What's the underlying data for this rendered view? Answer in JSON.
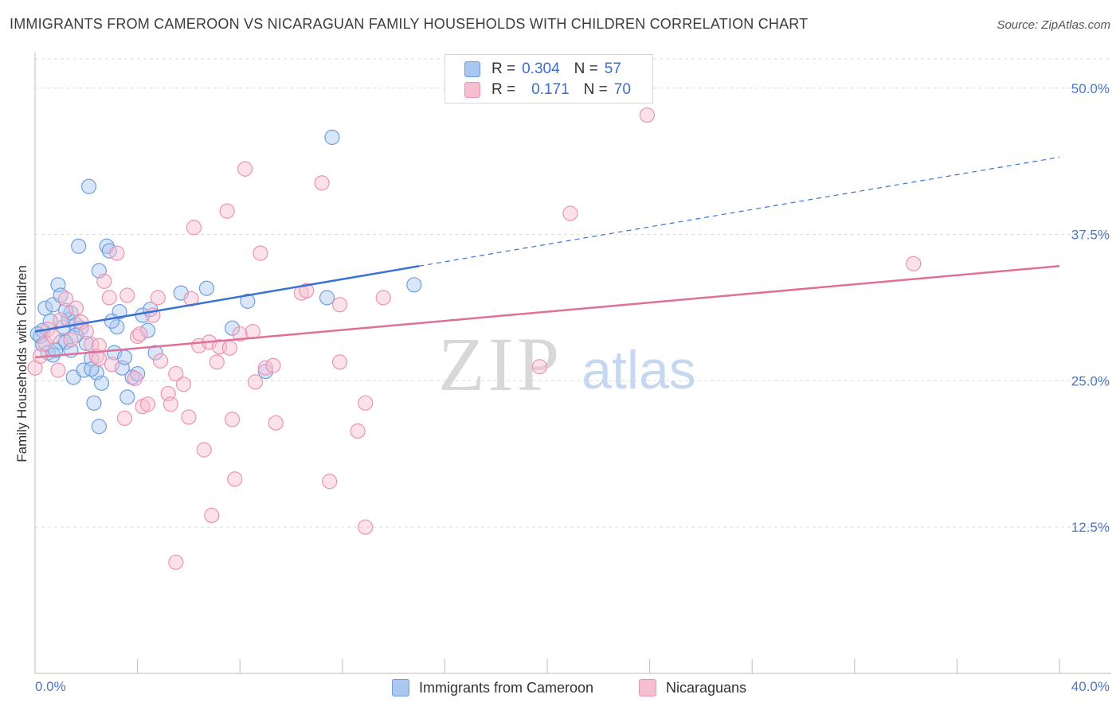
{
  "title": "IMMIGRANTS FROM CAMEROON VS NICARAGUAN FAMILY HOUSEHOLDS WITH CHILDREN CORRELATION CHART",
  "source": "Source: ZipAtlas.com",
  "watermark": {
    "zip": "ZIP",
    "atlas": "atlas"
  },
  "colors": {
    "blue_fill": "#aac7f0",
    "blue_stroke": "#6f9ee0",
    "blue_line": "#3a72d2",
    "pink_fill": "#f6bfd0",
    "pink_stroke": "#ec93b1",
    "pink_line": "#e0709a",
    "tick_text": "#4a78c8",
    "grid": "#dcdcdc"
  },
  "legend_top": {
    "rows": [
      {
        "r_label": "R =",
        "r_value": "0.304",
        "n_label": "N =",
        "n_value": "57"
      },
      {
        "r_label": "R =",
        "r_value": "0.171",
        "n_label": "N =",
        "n_value": "70"
      }
    ]
  },
  "legend_bottom": {
    "items": [
      {
        "label": "Immigrants from Cameroon"
      },
      {
        "label": "Nicaraguans"
      }
    ]
  },
  "chart_data": {
    "type": "scatter",
    "title": "IMMIGRANTS FROM CAMEROON VS NICARAGUAN FAMILY HOUSEHOLDS WITH CHILDREN CORRELATION CHART",
    "xlabel": "",
    "ylabel": "Family Households with Children",
    "xlim": [
      0,
      40
    ],
    "ylim": [
      0,
      52.5
    ],
    "y_ticks": [
      12.5,
      25.0,
      37.5,
      50.0
    ],
    "y_tick_labels": [
      "12.5%",
      "25.0%",
      "37.5%",
      "50.0%"
    ],
    "x_tick_labels": [
      "0.0%",
      "40.0%"
    ],
    "grid": true,
    "legend_position": "top-center",
    "series": [
      {
        "name": "Immigrants from Cameroon",
        "color": "#aac7f0",
        "trend": {
          "x": [
            0,
            15
          ],
          "y": [
            29.2,
            34.8
          ],
          "dashed_to": [
            40,
            44.1
          ]
        },
        "points": [
          [
            0.2,
            28.8
          ],
          [
            0.3,
            29.3
          ],
          [
            0.3,
            28.1
          ],
          [
            0.4,
            31.2
          ],
          [
            0.5,
            27.4
          ],
          [
            0.6,
            30.1
          ],
          [
            0.7,
            31.5
          ],
          [
            0.7,
            27.2
          ],
          [
            0.9,
            33.2
          ],
          [
            1.0,
            32.3
          ],
          [
            1.0,
            28.3
          ],
          [
            1.1,
            29.6
          ],
          [
            1.2,
            28.3
          ],
          [
            1.3,
            30.2
          ],
          [
            1.4,
            27.6
          ],
          [
            1.4,
            30.8
          ],
          [
            1.5,
            25.3
          ],
          [
            1.6,
            29.8
          ],
          [
            1.7,
            36.5
          ],
          [
            1.8,
            29.5
          ],
          [
            1.9,
            25.9
          ],
          [
            2.0,
            28.2
          ],
          [
            2.1,
            41.6
          ],
          [
            2.2,
            26.9
          ],
          [
            2.3,
            23.1
          ],
          [
            2.4,
            25.7
          ],
          [
            2.5,
            21.1
          ],
          [
            2.5,
            34.4
          ],
          [
            2.6,
            24.8
          ],
          [
            2.8,
            36.5
          ],
          [
            2.9,
            36.1
          ],
          [
            3.1,
            27.4
          ],
          [
            3.2,
            29.6
          ],
          [
            3.3,
            30.9
          ],
          [
            3.4,
            26.1
          ],
          [
            3.5,
            27.0
          ],
          [
            3.6,
            23.6
          ],
          [
            3.8,
            25.3
          ],
          [
            4.2,
            30.6
          ],
          [
            4.4,
            29.3
          ],
          [
            4.5,
            31.1
          ],
          [
            4.7,
            27.4
          ],
          [
            5.7,
            32.5
          ],
          [
            6.7,
            32.9
          ],
          [
            7.7,
            29.5
          ],
          [
            8.3,
            31.8
          ],
          [
            9.0,
            25.8
          ],
          [
            11.4,
            32.1
          ],
          [
            11.6,
            45.8
          ],
          [
            14.8,
            33.2
          ],
          [
            0.1,
            29.0
          ],
          [
            0.8,
            27.6
          ],
          [
            1.2,
            31.0
          ],
          [
            1.6,
            28.9
          ],
          [
            2.2,
            26.0
          ],
          [
            3.0,
            30.1
          ],
          [
            4.0,
            25.6
          ]
        ]
      },
      {
        "name": "Nicaraguans",
        "color": "#f6bfd0",
        "trend": {
          "x": [
            0,
            40
          ],
          "y": [
            27.0,
            34.8
          ]
        },
        "points": [
          [
            0.0,
            26.1
          ],
          [
            0.2,
            27.1
          ],
          [
            0.4,
            28.2
          ],
          [
            0.5,
            29.4
          ],
          [
            0.7,
            28.8
          ],
          [
            0.9,
            25.9
          ],
          [
            1.0,
            30.2
          ],
          [
            1.2,
            32.0
          ],
          [
            1.4,
            28.5
          ],
          [
            1.6,
            31.2
          ],
          [
            1.8,
            30.0
          ],
          [
            2.0,
            29.2
          ],
          [
            2.2,
            28.1
          ],
          [
            2.4,
            27.1
          ],
          [
            2.5,
            28.0
          ],
          [
            2.7,
            33.5
          ],
          [
            2.9,
            32.1
          ],
          [
            3.0,
            26.4
          ],
          [
            3.2,
            35.9
          ],
          [
            3.5,
            21.8
          ],
          [
            3.6,
            32.3
          ],
          [
            3.9,
            25.2
          ],
          [
            4.0,
            28.8
          ],
          [
            4.1,
            29.0
          ],
          [
            4.2,
            22.8
          ],
          [
            4.4,
            23.0
          ],
          [
            4.6,
            30.6
          ],
          [
            4.8,
            32.1
          ],
          [
            4.9,
            26.7
          ],
          [
            5.2,
            23.9
          ],
          [
            5.3,
            23.0
          ],
          [
            5.5,
            25.6
          ],
          [
            5.8,
            24.7
          ],
          [
            6.0,
            21.9
          ],
          [
            6.1,
            32.0
          ],
          [
            6.2,
            38.1
          ],
          [
            6.4,
            28.0
          ],
          [
            6.6,
            19.1
          ],
          [
            6.8,
            28.3
          ],
          [
            6.9,
            13.5
          ],
          [
            7.1,
            26.6
          ],
          [
            7.2,
            27.9
          ],
          [
            7.5,
            39.5
          ],
          [
            7.6,
            27.8
          ],
          [
            7.7,
            21.7
          ],
          [
            7.8,
            16.6
          ],
          [
            8.0,
            29.0
          ],
          [
            8.2,
            43.1
          ],
          [
            8.5,
            29.2
          ],
          [
            8.6,
            24.9
          ],
          [
            8.8,
            35.9
          ],
          [
            9.0,
            26.1
          ],
          [
            9.3,
            26.3
          ],
          [
            9.4,
            21.4
          ],
          [
            10.4,
            32.5
          ],
          [
            10.6,
            32.7
          ],
          [
            11.2,
            41.9
          ],
          [
            11.5,
            16.4
          ],
          [
            11.9,
            26.6
          ],
          [
            11.9,
            31.5
          ],
          [
            12.6,
            20.7
          ],
          [
            12.9,
            23.1
          ],
          [
            12.9,
            12.5
          ],
          [
            13.6,
            32.1
          ],
          [
            19.7,
            26.2
          ],
          [
            20.9,
            39.3
          ],
          [
            23.9,
            47.7
          ],
          [
            34.3,
            35.0
          ],
          [
            5.5,
            9.5
          ],
          [
            2.5,
            26.9
          ]
        ]
      }
    ]
  }
}
